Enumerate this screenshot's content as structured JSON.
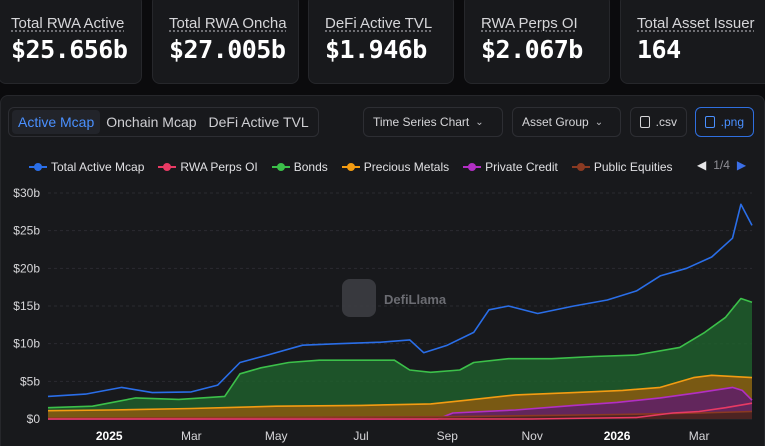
{
  "stats": [
    {
      "label": "Total RWA Active",
      "value": "$25.656b"
    },
    {
      "label": "Total RWA Oncha",
      "value": "$27.005b"
    },
    {
      "label": "DeFi Active TVL",
      "value": "$1.946b"
    },
    {
      "label": "RWA Perps OI",
      "value": "$2.067b"
    },
    {
      "label": "Total Asset Issuer",
      "value": "164"
    }
  ],
  "tabs": [
    {
      "label": "Active Mcap",
      "active": true
    },
    {
      "label": "Onchain Mcap",
      "active": false
    },
    {
      "label": "DeFi Active TVL",
      "active": false
    }
  ],
  "controls": {
    "chart_type": "Time Series Chart",
    "grouping": "Asset Group",
    "csv": ".csv",
    "png": ".png"
  },
  "legend": [
    {
      "name": "Total Active Mcap",
      "color": "#2a6ee8"
    },
    {
      "name": "RWA Perps OI",
      "color": "#e83a64"
    },
    {
      "name": "Bonds",
      "color": "#3cc04a"
    },
    {
      "name": "Precious Metals",
      "color": "#f39c12"
    },
    {
      "name": "Private Credit",
      "color": "#b22fc4"
    },
    {
      "name": "Public Equities",
      "color": "#8a3a22"
    }
  ],
  "pager": {
    "text": "1/4",
    "prev_icon": "triangle-left-icon",
    "next_icon": "triangle-right-icon"
  },
  "watermark": "DefiLlama",
  "chart_data": {
    "type": "area",
    "x_labels": [
      "2025",
      "Mar",
      "May",
      "Jul",
      "Sep",
      "Nov",
      "2026",
      "Mar"
    ],
    "x_domain": [
      "2024-11-18",
      "2026-04-08"
    ],
    "y_ticks": [
      "$0",
      "$5b",
      "$10b",
      "$15b",
      "$20b",
      "$25b",
      "$30b"
    ],
    "ylim": [
      0,
      30
    ],
    "yunit": "$b",
    "series": [
      {
        "name": "Total Active Mcap",
        "color": "#2a6ee8",
        "fill": false,
        "points": [
          [
            "2024-11-18",
            3.0
          ],
          [
            "2024-12-15",
            3.3
          ],
          [
            "2025-01-10",
            4.2
          ],
          [
            "2025-02-01",
            3.5
          ],
          [
            "2025-03-01",
            3.6
          ],
          [
            "2025-03-20",
            4.5
          ],
          [
            "2025-04-05",
            7.5
          ],
          [
            "2025-04-25",
            8.5
          ],
          [
            "2025-05-20",
            9.8
          ],
          [
            "2025-06-15",
            10.0
          ],
          [
            "2025-07-15",
            10.2
          ],
          [
            "2025-08-05",
            10.5
          ],
          [
            "2025-08-15",
            8.8
          ],
          [
            "2025-09-01",
            9.8
          ],
          [
            "2025-09-20",
            11.5
          ],
          [
            "2025-10-01",
            14.5
          ],
          [
            "2025-10-15",
            15.0
          ],
          [
            "2025-11-05",
            14.0
          ],
          [
            "2025-12-01",
            15.0
          ],
          [
            "2025-12-25",
            15.8
          ],
          [
            "2026-01-15",
            17.0
          ],
          [
            "2026-02-01",
            19.0
          ],
          [
            "2026-02-20",
            20.0
          ],
          [
            "2026-03-10",
            21.5
          ],
          [
            "2026-03-25",
            24.0
          ],
          [
            "2026-03-31",
            28.5
          ],
          [
            "2026-04-08",
            25.7
          ]
        ]
      },
      {
        "name": "Bonds",
        "color": "#3cc04a",
        "fill": true,
        "fillColor": "#1e5e2b",
        "points": [
          [
            "2024-11-18",
            1.5
          ],
          [
            "2024-12-20",
            1.7
          ],
          [
            "2025-01-20",
            2.8
          ],
          [
            "2025-02-20",
            2.6
          ],
          [
            "2025-03-25",
            3.0
          ],
          [
            "2025-04-05",
            6.0
          ],
          [
            "2025-04-20",
            6.8
          ],
          [
            "2025-05-10",
            7.5
          ],
          [
            "2025-06-01",
            7.8
          ],
          [
            "2025-07-25",
            7.8
          ],
          [
            "2025-08-05",
            6.5
          ],
          [
            "2025-08-20",
            6.2
          ],
          [
            "2025-09-10",
            6.5
          ],
          [
            "2025-09-20",
            7.5
          ],
          [
            "2025-10-15",
            8.0
          ],
          [
            "2025-11-15",
            8.0
          ],
          [
            "2025-12-15",
            8.3
          ],
          [
            "2026-01-15",
            8.5
          ],
          [
            "2026-02-15",
            9.5
          ],
          [
            "2026-03-05",
            11.5
          ],
          [
            "2026-03-20",
            13.5
          ],
          [
            "2026-03-31",
            16.0
          ],
          [
            "2026-04-08",
            15.5
          ]
        ]
      },
      {
        "name": "Precious Metals",
        "color": "#f39c12",
        "fill": true,
        "fillColor": "#8a5a0f",
        "points": [
          [
            "2024-11-18",
            1.1
          ],
          [
            "2025-01-01",
            1.2
          ],
          [
            "2025-03-01",
            1.4
          ],
          [
            "2025-05-01",
            1.7
          ],
          [
            "2025-07-01",
            1.8
          ],
          [
            "2025-08-20",
            2.0
          ],
          [
            "2025-09-15",
            2.5
          ],
          [
            "2025-10-20",
            3.2
          ],
          [
            "2025-12-01",
            3.5
          ],
          [
            "2026-01-05",
            3.8
          ],
          [
            "2026-02-01",
            4.2
          ],
          [
            "2026-02-25",
            5.5
          ],
          [
            "2026-03-10",
            5.8
          ],
          [
            "2026-04-08",
            5.5
          ]
        ]
      },
      {
        "name": "Private Credit",
        "color": "#b22fc4",
        "fill": true,
        "fillColor": "#5e1d6a",
        "points": [
          [
            "2024-11-18",
            0.0
          ],
          [
            "2025-08-25",
            0.0
          ],
          [
            "2025-09-05",
            0.8
          ],
          [
            "2025-10-20",
            1.2
          ],
          [
            "2025-12-01",
            1.8
          ],
          [
            "2026-01-01",
            2.2
          ],
          [
            "2026-02-01",
            2.8
          ],
          [
            "2026-03-01",
            3.5
          ],
          [
            "2026-03-25",
            4.2
          ],
          [
            "2026-04-01",
            3.8
          ],
          [
            "2026-04-08",
            2.5
          ]
        ]
      },
      {
        "name": "Public Equities",
        "color": "#8a3a22",
        "fill": true,
        "fillColor": "#4a2418",
        "points": [
          [
            "2024-11-18",
            0.1
          ],
          [
            "2025-09-01",
            0.3
          ],
          [
            "2026-01-01",
            0.6
          ],
          [
            "2026-03-01",
            0.8
          ],
          [
            "2026-04-08",
            1.0
          ]
        ]
      },
      {
        "name": "RWA Perps OI",
        "color": "#e83a64",
        "fill": false,
        "points": [
          [
            "2024-11-18",
            0.0
          ],
          [
            "2025-11-01",
            0.0
          ],
          [
            "2026-01-15",
            0.2
          ],
          [
            "2026-02-10",
            0.8
          ],
          [
            "2026-03-01",
            1.0
          ],
          [
            "2026-03-20",
            1.5
          ],
          [
            "2026-04-08",
            2.1
          ]
        ]
      }
    ]
  }
}
